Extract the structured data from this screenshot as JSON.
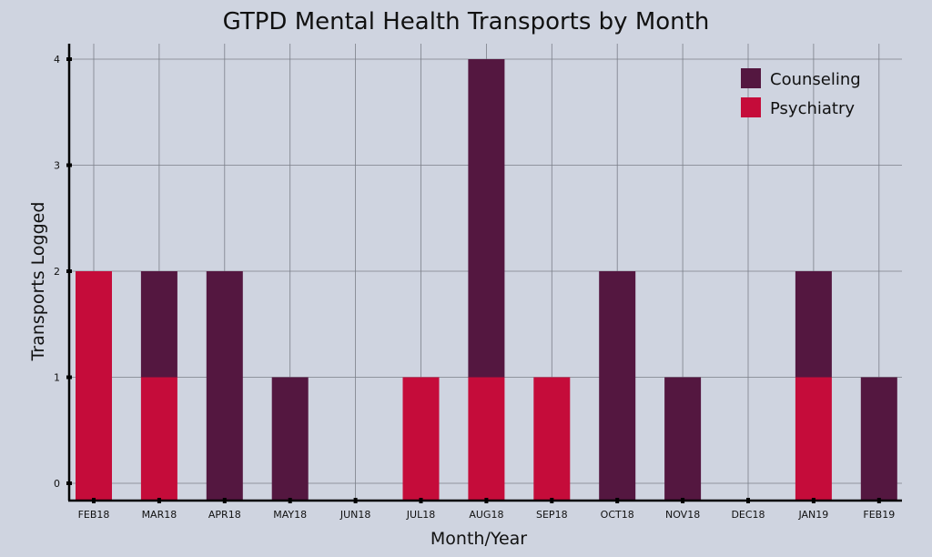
{
  "chart_data": {
    "type": "bar",
    "stacked": true,
    "title": "GTPD Mental Health Transports by Month",
    "xlabel": "Month/Year",
    "ylabel": "Transports Logged",
    "categories": [
      "FEB18",
      "MAR18",
      "APR18",
      "MAY18",
      "JUN18",
      "JUL18",
      "AUG18",
      "SEP18",
      "OCT18",
      "NOV18",
      "DEC18",
      "JAN19",
      "FEB19"
    ],
    "series": [
      {
        "name": "Psychiatry",
        "color": "#c50c3a",
        "values": [
          2,
          1,
          0,
          0,
          0,
          1,
          1,
          1,
          0,
          0,
          0,
          1,
          0
        ]
      },
      {
        "name": "Counseling",
        "color": "#541740",
        "values": [
          0,
          1,
          2,
          1,
          0,
          0,
          3,
          0,
          2,
          1,
          0,
          1,
          1
        ]
      }
    ],
    "yticks": [
      "0",
      "1",
      "2",
      "3",
      "4"
    ],
    "ylim": [
      0,
      4
    ],
    "grid": true,
    "legend": {
      "position": "top-right",
      "order": [
        "Counseling",
        "Psychiatry"
      ]
    },
    "colors": {
      "background": "#cfd4e0"
    }
  }
}
